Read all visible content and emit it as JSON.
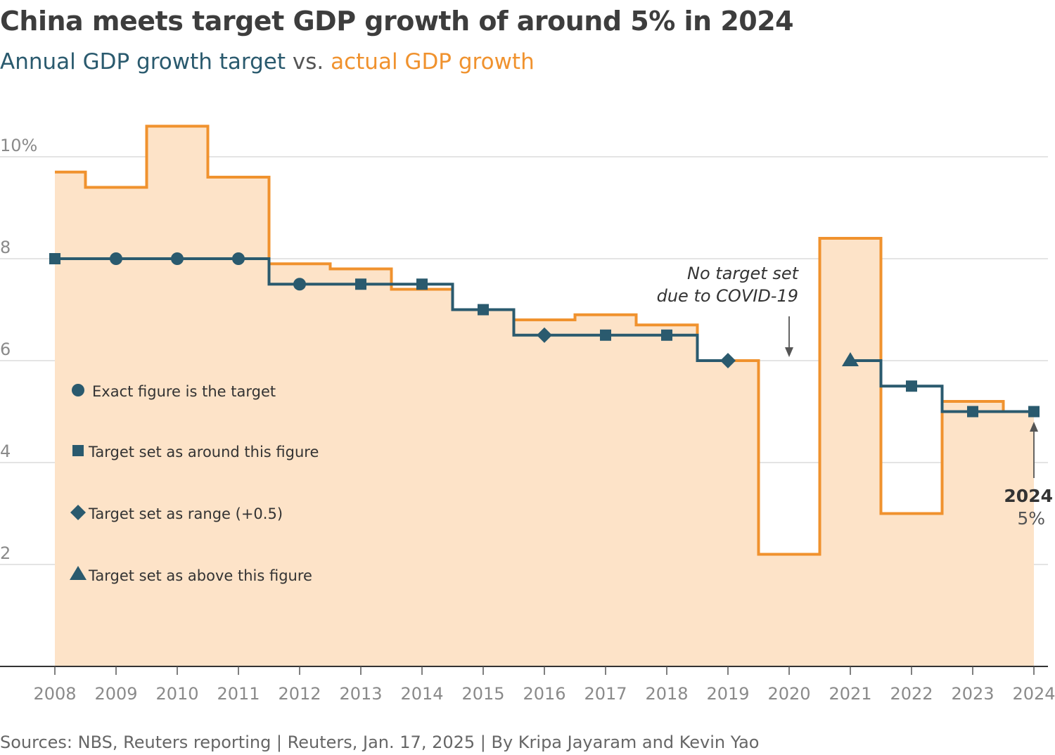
{
  "title": "China meets target GDP growth of around 5% in 2024",
  "subtitle": {
    "part1": "Annual GDP growth target",
    "part2": "vs.",
    "part3": "actual GDP growth"
  },
  "source": "Sources: NBS, Reuters reporting | Reuters, Jan. 17, 2025 | By Kripa Jayaram and Kevin Yao",
  "colors": {
    "target": "#2a5a6e",
    "actual": "#f0922e",
    "area": "#fde3c8"
  },
  "chart_data": {
    "type": "line",
    "x": [
      2008,
      2009,
      2010,
      2011,
      2012,
      2013,
      2014,
      2015,
      2016,
      2017,
      2018,
      2019,
      2020,
      2021,
      2022,
      2023,
      2024
    ],
    "ylim": [
      0,
      10
    ],
    "y_ticks": [
      2,
      4,
      6,
      8,
      10
    ],
    "y_tick_labels": [
      "2",
      "4",
      "6",
      "8",
      "10%"
    ],
    "grid": true,
    "series": [
      {
        "name": "actual GDP growth",
        "style": "step-area",
        "values": [
          9.7,
          9.4,
          10.6,
          9.6,
          7.9,
          7.8,
          7.4,
          7.0,
          6.8,
          6.9,
          6.7,
          6.0,
          2.2,
          8.4,
          3.0,
          5.2,
          5.0
        ]
      },
      {
        "name": "Annual GDP growth target",
        "style": "step",
        "values": [
          8,
          8,
          8,
          8,
          7.5,
          7.5,
          7.5,
          7,
          6.5,
          6.5,
          6.5,
          6,
          null,
          6,
          5.5,
          5,
          5
        ],
        "markers": [
          "square",
          "circle",
          "circle",
          "circle",
          "circle",
          "square",
          "square",
          "square",
          "diamond",
          "square",
          "square",
          "diamond",
          null,
          "triangle",
          "square",
          "square",
          "square"
        ]
      }
    ],
    "legend": {
      "placement": "left",
      "items": [
        {
          "marker": "circle",
          "label": "Exact figure is the target"
        },
        {
          "marker": "square",
          "label": "Target set as around this figure"
        },
        {
          "marker": "diamond",
          "label": "Target set as range (+0.5)"
        },
        {
          "marker": "triangle",
          "label": "Target set as above this figure"
        }
      ]
    },
    "annotations": {
      "covid_line1": "No target set",
      "covid_line2": "due to COVID-19",
      "end_year": "2024",
      "end_value": "5%"
    }
  }
}
